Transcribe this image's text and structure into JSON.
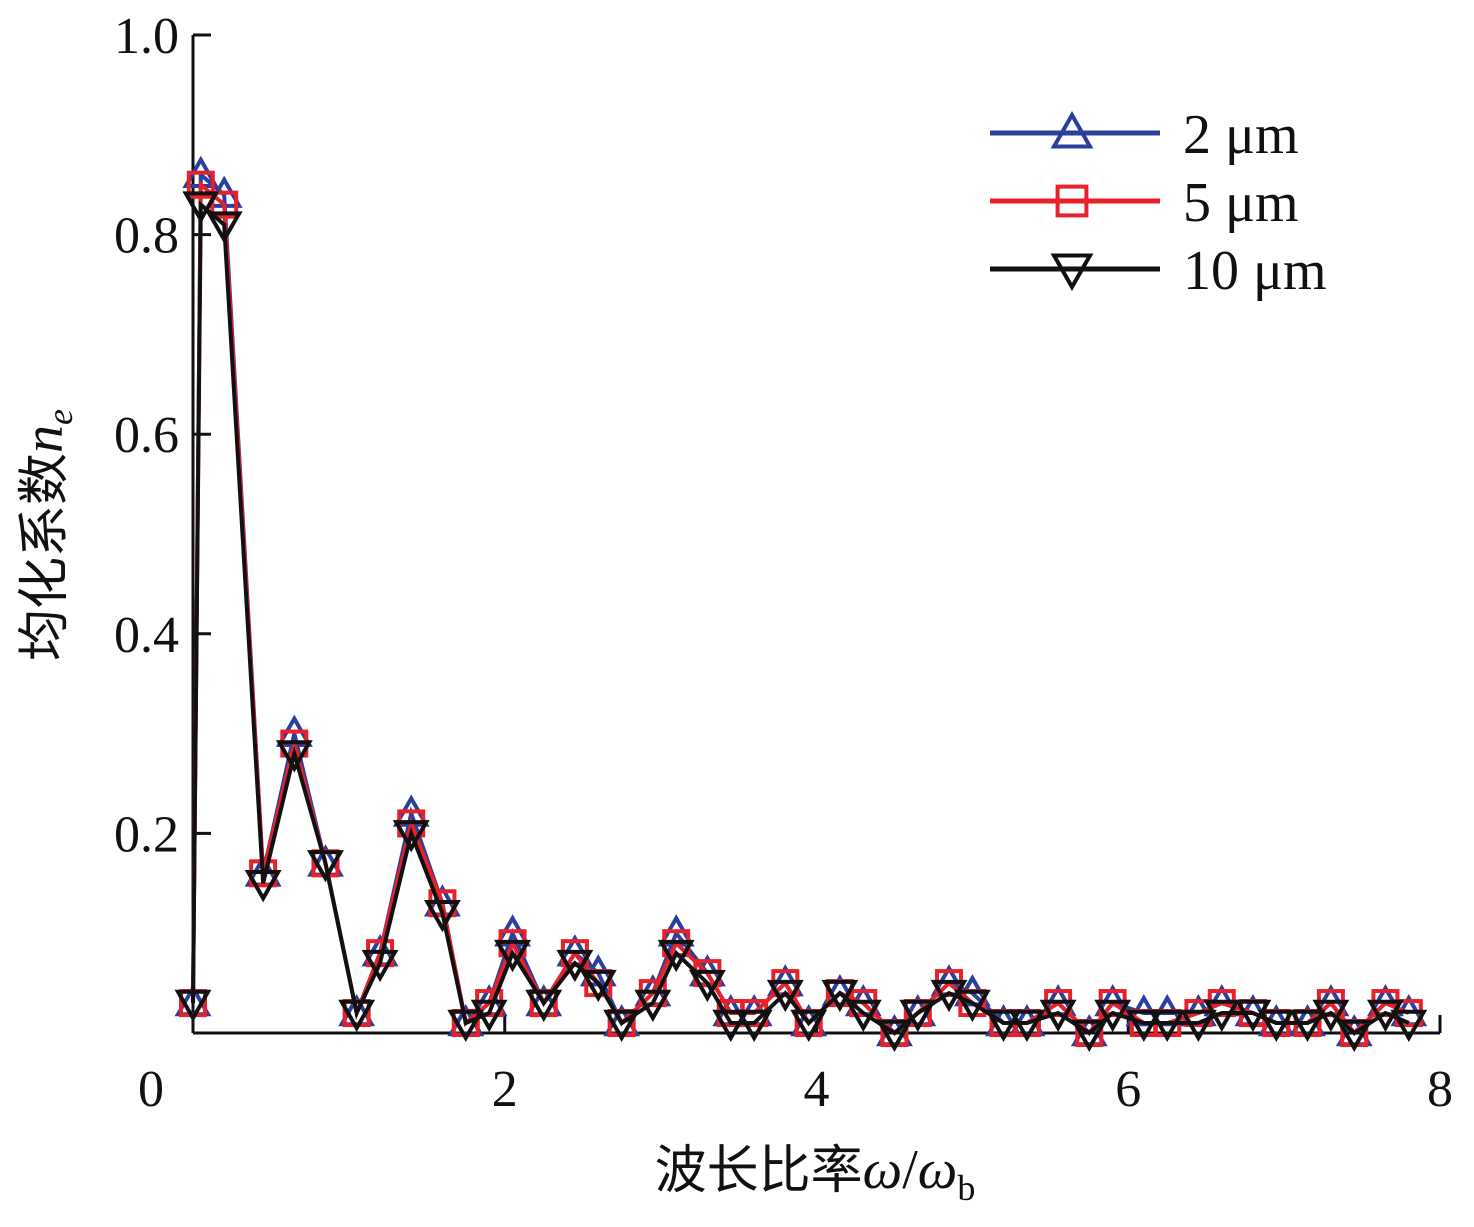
{
  "chart_data": {
    "type": "line",
    "title": "",
    "xlabel": {
      "text": "波长比率",
      "var": "ω",
      "slash": "/",
      "var2": "ω",
      "sub": "b"
    },
    "ylabel": {
      "text": "均化系数",
      "var": "n",
      "sub": "e"
    },
    "xlim": [
      0,
      8
    ],
    "ylim": [
      0,
      1.0
    ],
    "xticks": [
      0,
      2,
      4,
      6,
      8
    ],
    "yticks": [
      0.2,
      0.4,
      0.6,
      0.8,
      1.0
    ],
    "xtick_labels": [
      "0",
      "2",
      "4",
      "6",
      "8"
    ],
    "ytick_labels": [
      "0.2",
      "0.4",
      "0.6",
      "0.8",
      "1.0"
    ],
    "grid": false,
    "legend_position": "top-right",
    "x": [
      0.0,
      0.05,
      0.2,
      0.45,
      0.65,
      0.85,
      1.05,
      1.2,
      1.4,
      1.6,
      1.75,
      1.9,
      2.05,
      2.25,
      2.45,
      2.6,
      2.75,
      2.95,
      3.1,
      3.3,
      3.45,
      3.6,
      3.8,
      3.95,
      4.15,
      4.3,
      4.5,
      4.65,
      4.85,
      5.0,
      5.2,
      5.35,
      5.55,
      5.75,
      5.9,
      6.1,
      6.25,
      6.45,
      6.6,
      6.8,
      6.95,
      7.15,
      7.3,
      7.45,
      7.65,
      7.8
    ],
    "series": [
      {
        "name": "2 μm",
        "color": "#2b3f9e",
        "marker": "triangle-up",
        "values": [
          0.03,
          0.86,
          0.84,
          0.16,
          0.3,
          0.17,
          0.02,
          0.08,
          0.22,
          0.13,
          0.01,
          0.03,
          0.1,
          0.03,
          0.08,
          0.06,
          0.01,
          0.04,
          0.1,
          0.06,
          0.02,
          0.02,
          0.05,
          0.01,
          0.04,
          0.03,
          0.0,
          0.02,
          0.05,
          0.04,
          0.01,
          0.01,
          0.03,
          0.0,
          0.03,
          0.02,
          0.02,
          0.02,
          0.03,
          0.02,
          0.01,
          0.01,
          0.03,
          0.0,
          0.03,
          0.02
        ]
      },
      {
        "name": "5 μm",
        "color": "#e8202a",
        "marker": "square",
        "values": [
          0.03,
          0.85,
          0.83,
          0.16,
          0.29,
          0.17,
          0.02,
          0.08,
          0.21,
          0.13,
          0.01,
          0.03,
          0.09,
          0.03,
          0.08,
          0.05,
          0.01,
          0.04,
          0.09,
          0.06,
          0.02,
          0.02,
          0.05,
          0.01,
          0.04,
          0.03,
          0.0,
          0.02,
          0.05,
          0.03,
          0.01,
          0.01,
          0.03,
          0.0,
          0.03,
          0.01,
          0.01,
          0.02,
          0.03,
          0.02,
          0.01,
          0.01,
          0.03,
          0.0,
          0.03,
          0.02
        ]
      },
      {
        "name": "10 μm",
        "color": "#111111",
        "marker": "triangle-down",
        "values": [
          0.03,
          0.83,
          0.81,
          0.15,
          0.28,
          0.17,
          0.02,
          0.07,
          0.2,
          0.12,
          0.01,
          0.02,
          0.08,
          0.03,
          0.07,
          0.05,
          0.01,
          0.03,
          0.08,
          0.05,
          0.01,
          0.01,
          0.04,
          0.01,
          0.04,
          0.02,
          0.0,
          0.02,
          0.04,
          0.03,
          0.01,
          0.01,
          0.02,
          0.0,
          0.02,
          0.01,
          0.01,
          0.01,
          0.02,
          0.02,
          0.01,
          0.01,
          0.02,
          0.0,
          0.02,
          0.01
        ]
      }
    ]
  }
}
